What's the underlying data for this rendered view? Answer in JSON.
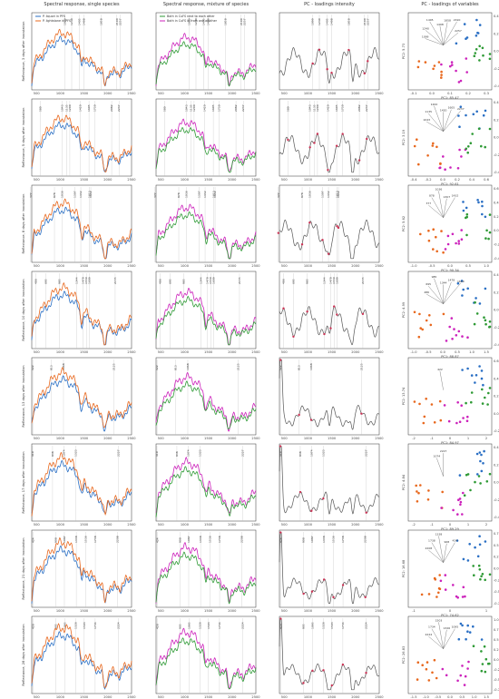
{
  "figure": {
    "col_titles": [
      "Spectral response, single species",
      "Spectral response, mixture of species",
      "PC - loadings intensity",
      "PC - loadings of variables"
    ],
    "xlabel": "Wavelengths [nm]",
    "row_ylabels": [
      "Reflectance, 3 days after inoculation",
      "Reflectance, 5 days after inoculation",
      "Reflectance, 8 days after inoculation",
      "Reflectance, 10 days after inoculation",
      "Reflectance, 13 days after inoculation",
      "Reflectance, 17 days after inoculation",
      "Reflectance, 21 days after inoculation",
      "Reflectance, 28 days after inoculation"
    ],
    "legend_single": [
      "P. liquori in PFS",
      "P. lightstone in PFS"
    ],
    "legend_mix": [
      "Both in CuFS next to each other",
      "Both in CuFS in from one another"
    ],
    "colors": {
      "blue": "#2a6fc4",
      "orange": "#e8681e",
      "magenta": "#cc22bb",
      "green": "#2e9a35",
      "gray": "#555555",
      "marker": "#cc3355"
    }
  },
  "chart_data": {
    "type": "line",
    "x_range": [
      400,
      2500
    ],
    "x_ticks": [
      500,
      1000,
      1500,
      2000,
      2500
    ],
    "rows": [
      {
        "annotations": [
          1099,
          1240,
          1405,
          1498,
          1858,
          2190,
          2257
        ],
        "pc_axes": {
          "x": "PC1: 85.47",
          "y": "PC2: 5.73"
        },
        "pc_xticks": [
          "-0.1",
          "0.0",
          "0.1",
          "0.2",
          "0.3"
        ],
        "pc_yticks": [
          "0.4",
          "0.2",
          "0.0",
          "-0.2",
          "-0.4"
        ],
        "pc_vectors": [
          "1099",
          "1240",
          "1405",
          "1498",
          "1858",
          "2190",
          "2257"
        ]
      },
      {
        "annotations": [
          580,
          1043,
          1135,
          1200,
          1420,
          1605,
          1730,
          2082,
          2237
        ],
        "pc_axes": {
          "x": "PC1: 92.61",
          "y": "PC2: 3.19"
        },
        "pc_xticks": [
          "-0.4",
          "-0.2",
          "0.0",
          "0.2",
          "0.4",
          "0.6"
        ],
        "pc_yticks": [
          "0.4",
          "0.2",
          "0.0",
          "-0.2",
          "-0.4"
        ],
        "pc_vectors": [
          "1043",
          "1135",
          "1200",
          "1420",
          "1605",
          "2237"
        ]
      },
      {
        "annotations": [
          377,
          878,
          1036,
          1307,
          1432,
          1613,
          1642
        ],
        "pc_axes": {
          "x": "PC1: 90.34",
          "y": "PC2: 5.62"
        },
        "pc_xticks": [
          "-1.0",
          "-0.5",
          "0.0",
          "0.5",
          "1.0"
        ],
        "pc_yticks": [
          "0.6",
          "0.4",
          "0.2",
          "0.0",
          "-0.2",
          "-0.4"
        ],
        "pc_vectors": [
          "377",
          "878",
          "1036",
          "1307",
          "1432"
        ]
      },
      {
        "annotations": [
          486,
          695,
          985,
          1344,
          1478,
          1550,
          1609,
          2155
        ],
        "pc_axes": {
          "x": "PC1: 88.87",
          "y": "PC2: 4.99"
        },
        "pc_xticks": [
          "-1.0",
          "-0.5",
          "0.0",
          "0.5",
          "1.0",
          "1.5"
        ],
        "pc_yticks": [
          "0.4",
          "0.2",
          "0.0",
          "-0.2",
          "-0.4"
        ],
        "pc_vectors": [
          "486",
          "695",
          "985",
          "1344",
          "1478",
          "1609"
        ]
      },
      {
        "annotations": [
          422,
          813,
          1068,
          2125
        ],
        "pc_axes": {
          "x": "PC1: 84.97",
          "y": "PC2: 13.74"
        },
        "pc_xticks": [
          "-2",
          "-1",
          "0",
          "1",
          "2"
        ],
        "pc_yticks": [
          "0.6",
          "0.4",
          "0.2",
          "0.0",
          "-0.2"
        ],
        "pc_vectors": [
          "422"
        ]
      },
      {
        "annotations": [
          419,
          838,
          1074,
          1323,
          2227
        ],
        "pc_axes": {
          "x": "PC1: 89.29",
          "y": "PC2: 4.84"
        },
        "pc_xticks": [
          "-2",
          "-1",
          "0",
          "1",
          "2"
        ],
        "pc_yticks": [
          "0.4",
          "0.2",
          "0.0",
          "-0.2",
          "-0.4"
        ],
        "pc_vectors": [
          "1074",
          "2227"
        ]
      },
      {
        "annotations": [
          424,
          908,
          1087,
          1338,
          1536,
          1738,
          2208
        ],
        "pc_axes": {
          "x": "PC1: 74.62",
          "y": "PC2: 16.68"
        },
        "pc_xticks": [
          "-1",
          "0",
          "1"
        ],
        "pc_yticks": [
          "0.75",
          "0.50",
          "0.25",
          "0.00",
          "-0.25",
          "-0.50",
          "-0.75"
        ],
        "pc_vectors": [
          "2208",
          "1738",
          "1338",
          "908",
          "424"
        ]
      },
      {
        "annotations": [
          426,
          905,
          1095,
          1326,
          1503,
          1734,
          2224
        ],
        "pc_axes": {
          "x": "PC1: 59.62",
          "y": "PC2: 26.83"
        },
        "pc_xticks": [
          "-1.5",
          "-1.0",
          "-0.5",
          "0.0",
          "0.5",
          "1.0",
          "1.5"
        ],
        "pc_yticks": [
          "1.00",
          "0.75",
          "0.50",
          "0.25",
          "0.00",
          "-0.25",
          "-0.50",
          "-0.75"
        ],
        "pc_vectors": [
          "2224",
          "1734",
          "1503",
          "1326",
          "1095"
        ]
      }
    ]
  }
}
